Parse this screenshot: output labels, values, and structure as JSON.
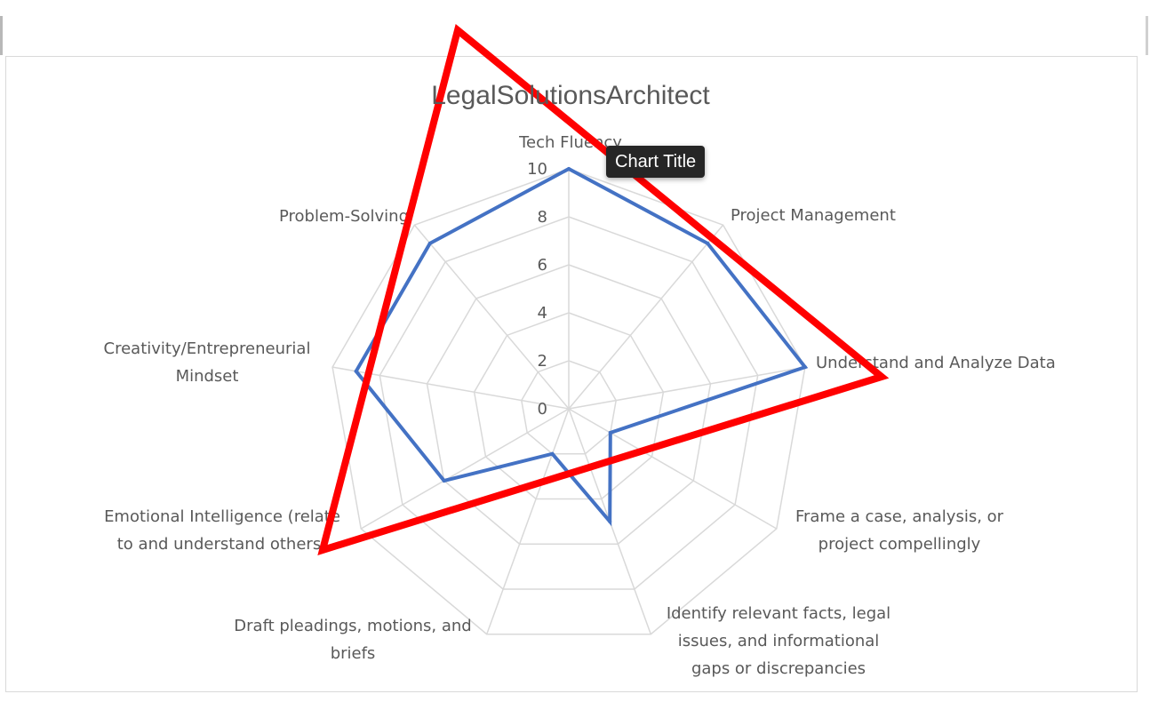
{
  "tooltip": {
    "text": "Chart Title"
  },
  "chart_data": {
    "type": "radar",
    "title": "LegalSolutionsArchitect",
    "categories": [
      "Tech Fluency",
      "Project Management",
      "Understand and Analyze Data",
      "Frame a case, analysis, or project compellingly",
      "Identify relevant facts, legal issues, and informational gaps or discrepancies",
      "Draft pleadings, motions, and briefs",
      "Emotional Intelligence (relate to and understand others)",
      "Creativity/Entrepreneurial Mindset",
      "Problem-Solving"
    ],
    "category_label_lines": [
      [
        "Tech Fluency"
      ],
      [
        "Project Management"
      ],
      [
        "Understand and Analyze Data"
      ],
      [
        "Frame a case, analysis, or",
        "project compellingly"
      ],
      [
        "Identify relevant facts, legal",
        "issues, and informational",
        "gaps or discrepancies"
      ],
      [
        "Draft pleadings, motions, and",
        "briefs"
      ],
      [
        "Emotional Intelligence (relate",
        "to and understand others)"
      ],
      [
        "Creativity/Entrepreneurial",
        "Mindset"
      ],
      [
        "Problem-Solving"
      ]
    ],
    "r_ticks": [
      "0",
      "2",
      "4",
      "6",
      "8",
      "10"
    ],
    "rlim": [
      0,
      10
    ],
    "grid": true,
    "series": [
      {
        "values": [
          10,
          9,
          10,
          2,
          5,
          2,
          6,
          9,
          9
        ],
        "color": "#4472C4"
      }
    ],
    "annotation": {
      "shape": "triangle",
      "color": "#FF0000"
    }
  }
}
